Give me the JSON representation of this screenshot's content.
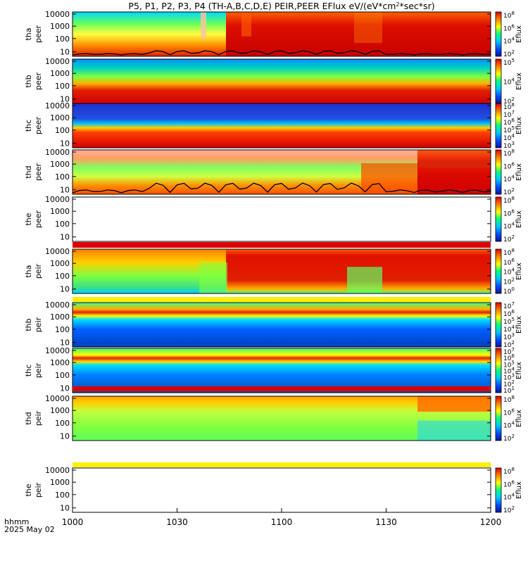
{
  "title_parts": [
    "P5, P1, P2, P3, P4 (TH-A,B,C,D,E) PEIR,PEER EFlux eV/(eV*cm",
    "2",
    "*sec*sr)"
  ],
  "x_axis": {
    "label_line1": "hhmm",
    "label_line2": "2025 May 02",
    "ticks": [
      "1000",
      "1030",
      "1100",
      "1130",
      "1200"
    ]
  },
  "colorbar_label": "Eflux",
  "panels": [
    {
      "name": "tha-peer",
      "probe": "tha",
      "species": "peer",
      "yticks": [
        "10000",
        "1000",
        "100",
        "10"
      ],
      "cbar": [
        [
          "8"
        ],
        [
          "6"
        ],
        [
          "4"
        ],
        [
          "2"
        ]
      ],
      "kind": "e1",
      "band": null,
      "line": true
    },
    {
      "name": "thb-peer",
      "probe": "thb",
      "species": "peer",
      "yticks": [
        "10000",
        "1000",
        "100",
        "10"
      ],
      "cbar": [
        [
          "5"
        ],
        [
          "4"
        ],
        [
          "2"
        ]
      ],
      "kind": "e2",
      "band": null,
      "line": false
    },
    {
      "name": "thc-peer",
      "probe": "thc",
      "species": "peer",
      "yticks": [
        "10000",
        "1000",
        "100",
        "10"
      ],
      "cbar": [
        [
          "8"
        ],
        [
          "7"
        ],
        [
          "6"
        ],
        [
          "5"
        ],
        [
          "4"
        ],
        [
          "3"
        ]
      ],
      "kind": "e3",
      "band": null,
      "line": false
    },
    {
      "name": "thd-peer",
      "probe": "thd",
      "species": "peer",
      "yticks": [
        "10000",
        "1000",
        "100",
        "10"
      ],
      "cbar": [
        [
          "8"
        ],
        [
          "6"
        ],
        [
          "4"
        ],
        [
          "2"
        ]
      ],
      "kind": "e4",
      "band": null,
      "line": true
    },
    {
      "name": "the-peer",
      "probe": "the",
      "species": "peer",
      "yticks": [
        "10000",
        "1000",
        "100",
        "10"
      ],
      "cbar": [
        [
          "8"
        ],
        [
          "6"
        ],
        [
          "4"
        ],
        [
          "2"
        ]
      ],
      "kind": "empty",
      "band": "#dd0000",
      "line": false
    },
    {
      "name": "tha-peir",
      "probe": "tha",
      "species": "peir",
      "yticks": [
        "10000",
        "1000",
        "100",
        "10"
      ],
      "cbar": [
        [
          "8"
        ],
        [
          "6"
        ],
        [
          "4"
        ],
        [
          "2"
        ],
        [
          "0"
        ]
      ],
      "kind": "i1",
      "band": "#ffee00",
      "line": false
    },
    {
      "name": "thb-peir",
      "probe": "thb",
      "species": "peir",
      "yticks": [
        "10000",
        "1000",
        "100",
        "10"
      ],
      "cbar": [
        [
          "7"
        ],
        [
          "6"
        ],
        [
          "5"
        ],
        [
          "4"
        ],
        [
          "3"
        ],
        [
          "2"
        ]
      ],
      "kind": "i2",
      "band": null,
      "line": false
    },
    {
      "name": "thc-peir",
      "probe": "thc",
      "species": "peir",
      "yticks": [
        "10000",
        "1000",
        "100",
        "10"
      ],
      "cbar": [
        [
          "7"
        ],
        [
          "6"
        ],
        [
          "5"
        ],
        [
          "4"
        ],
        [
          "3"
        ],
        [
          "2"
        ],
        [
          "1"
        ]
      ],
      "kind": "i3",
      "band": "#dd0000",
      "line": false
    },
    {
      "name": "thd-peir",
      "probe": "thd",
      "species": "peir",
      "yticks": [
        "10000",
        "1000",
        "100",
        "10"
      ],
      "cbar": [
        [
          "8"
        ],
        [
          "6"
        ],
        [
          "4"
        ],
        [
          "2"
        ]
      ],
      "kind": "i4",
      "band": "#ffee00",
      "line": false
    },
    {
      "name": "the-peir",
      "probe": "the",
      "species": "peir",
      "yticks": [
        "10000",
        "1000",
        "100",
        "10"
      ],
      "cbar": [
        [
          "8"
        ],
        [
          "6"
        ],
        [
          "4"
        ],
        [
          "2"
        ]
      ],
      "kind": "empty",
      "band": null,
      "line": false
    }
  ],
  "chart_data": {
    "type": "heatmap",
    "title": "P5, P1, P2, P3, P4 (TH-A,B,C,D,E) PEIR,PEER EFlux eV/(eV*cm2*sec*sr)",
    "x_label": "hhmm 2025 May 02",
    "x_range": [
      "1000",
      "1200"
    ],
    "y_scale": "log",
    "y_range": [
      5,
      20000
    ],
    "y_tick_labels": [
      "10",
      "100",
      "1000",
      "10000"
    ],
    "colorbar": {
      "label": "Eflux",
      "scale": "log",
      "colors": [
        "#1010a0",
        "#0050ff",
        "#00c8ff",
        "#00ff80",
        "#ffff00",
        "#ff8000",
        "#dd0000"
      ]
    },
    "panels": [
      "tha peer",
      "thb peer",
      "thc peer",
      "thd peer",
      "the peer",
      "tha peir",
      "thb peir",
      "thc peir",
      "thd peir",
      "the peir"
    ]
  }
}
